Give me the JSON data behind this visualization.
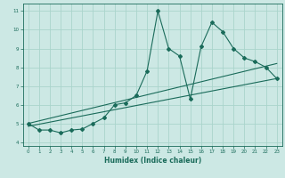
{
  "title": "",
  "xlabel": "Humidex (Indice chaleur)",
  "ylabel": "",
  "bg_color": "#cce8e4",
  "grid_color": "#aad4cc",
  "line_color": "#1a6b5a",
  "xlim": [
    -0.5,
    23.5
  ],
  "ylim": [
    3.8,
    11.4
  ],
  "xticks": [
    0,
    1,
    2,
    3,
    4,
    5,
    6,
    7,
    8,
    9,
    10,
    11,
    12,
    13,
    14,
    15,
    16,
    17,
    18,
    19,
    20,
    21,
    22,
    23
  ],
  "yticks": [
    4,
    5,
    6,
    7,
    8,
    9,
    10,
    11
  ],
  "main_x": [
    0,
    1,
    2,
    3,
    4,
    5,
    6,
    7,
    8,
    9,
    10,
    11,
    12,
    13,
    14,
    15,
    16,
    17,
    18,
    19,
    20,
    21,
    22,
    23
  ],
  "main_y": [
    5.0,
    4.65,
    4.65,
    4.5,
    4.65,
    4.7,
    5.0,
    5.3,
    6.0,
    6.1,
    6.5,
    7.8,
    11.0,
    9.0,
    8.6,
    6.3,
    9.1,
    10.4,
    9.9,
    9.0,
    8.5,
    8.3,
    8.0,
    7.4
  ],
  "trend1_x": [
    0,
    23
  ],
  "trend1_y": [
    5.0,
    8.2
  ],
  "trend2_x": [
    0,
    23
  ],
  "trend2_y": [
    4.85,
    7.4
  ],
  "figsize": [
    3.2,
    2.0
  ],
  "dpi": 100
}
